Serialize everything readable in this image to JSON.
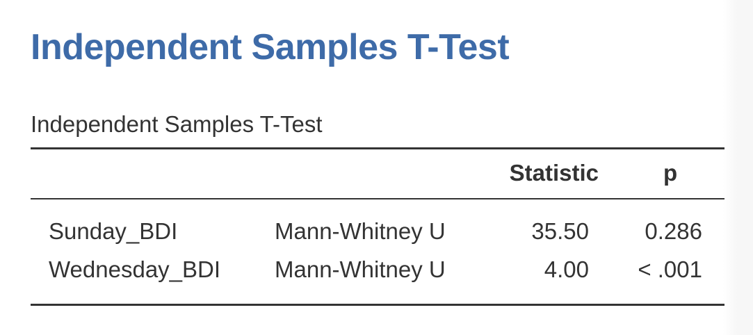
{
  "header": {
    "title": "Independent Samples T-Test"
  },
  "table": {
    "caption": "Independent Samples T-Test",
    "columns": [
      "Statistic",
      "p"
    ],
    "rows": [
      [
        "Sunday_BDI",
        "Mann-Whitney U",
        "35.50",
        "0.286"
      ],
      [
        "Wednesday_BDI",
        "Mann-Whitney U",
        "4.00",
        "< .001"
      ]
    ]
  }
}
